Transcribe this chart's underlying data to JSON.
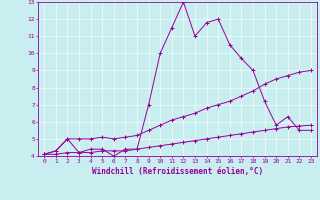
{
  "xlabel": "Windchill (Refroidissement éolien,°C)",
  "xlim": [
    -0.5,
    23.5
  ],
  "ylim": [
    4,
    13
  ],
  "xticks": [
    0,
    1,
    2,
    3,
    4,
    5,
    6,
    7,
    8,
    9,
    10,
    11,
    12,
    13,
    14,
    15,
    16,
    17,
    18,
    19,
    20,
    21,
    22,
    23
  ],
  "yticks": [
    4,
    5,
    6,
    7,
    8,
    9,
    10,
    11,
    12,
    13
  ],
  "bg_color": "#c8eef0",
  "line_color": "#990099",
  "line1_x": [
    0,
    1,
    2,
    3,
    4,
    5,
    6,
    7,
    8,
    9,
    10,
    11,
    12,
    13,
    14,
    15,
    16,
    17,
    18,
    19,
    20,
    21,
    22,
    23
  ],
  "line1_y": [
    4.1,
    4.3,
    5.0,
    4.2,
    4.4,
    4.4,
    4.0,
    4.4,
    4.4,
    7.0,
    10.0,
    11.5,
    13.0,
    11.0,
    11.8,
    12.0,
    10.5,
    9.7,
    9.0,
    7.2,
    5.8,
    6.3,
    5.5,
    5.5
  ],
  "line2_x": [
    0,
    1,
    2,
    3,
    4,
    5,
    6,
    7,
    8,
    9,
    10,
    11,
    12,
    13,
    14,
    15,
    16,
    17,
    18,
    19,
    20,
    21,
    22,
    23
  ],
  "line2_y": [
    4.1,
    4.3,
    5.0,
    5.0,
    5.0,
    5.1,
    5.0,
    5.1,
    5.2,
    5.5,
    5.8,
    6.1,
    6.3,
    6.5,
    6.8,
    7.0,
    7.2,
    7.5,
    7.8,
    8.2,
    8.5,
    8.7,
    8.9,
    9.0
  ],
  "line3_x": [
    0,
    1,
    2,
    3,
    4,
    5,
    6,
    7,
    8,
    9,
    10,
    11,
    12,
    13,
    14,
    15,
    16,
    17,
    18,
    19,
    20,
    21,
    22,
    23
  ],
  "line3_y": [
    4.1,
    4.1,
    4.2,
    4.2,
    4.2,
    4.3,
    4.3,
    4.3,
    4.4,
    4.5,
    4.6,
    4.7,
    4.8,
    4.9,
    5.0,
    5.1,
    5.2,
    5.3,
    5.4,
    5.5,
    5.6,
    5.7,
    5.75,
    5.8
  ],
  "grid_color": "#ffffff",
  "grid_linewidth": 0.4,
  "tick_label_color": "#990099",
  "tick_label_size": 4.5,
  "xlabel_size": 5.5,
  "xlabel_color": "#990099",
  "spine_color": "#990099",
  "marker": "+",
  "markersize": 3,
  "linewidth": 0.7
}
